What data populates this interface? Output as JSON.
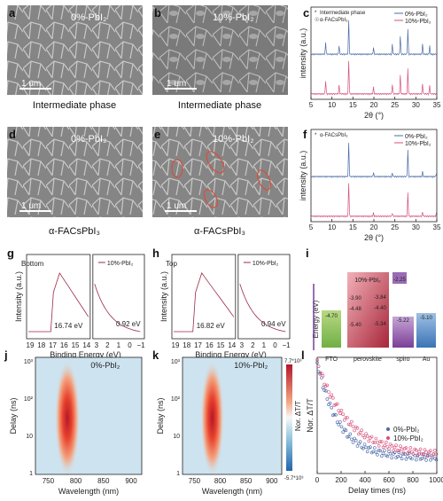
{
  "panels": {
    "a": {
      "letter": "a",
      "overlay": "0%-PbI₂",
      "scale": "1 um",
      "caption": "Intermediate phase"
    },
    "b": {
      "letter": "b",
      "overlay": "10%-PbI₂",
      "scale": "1 um",
      "caption": "Intermediate phase"
    },
    "d": {
      "letter": "d",
      "overlay": "0%-PbI₂",
      "scale": "1 um",
      "caption": "α-FACsPbI₃"
    },
    "e": {
      "letter": "e",
      "overlay": "10%-PbI₂",
      "scale": "1 um",
      "caption": "α-FACsPbI₃"
    },
    "c": {
      "letter": "c"
    },
    "f": {
      "letter": "f"
    },
    "g": {
      "letter": "g",
      "tag": "Bottom"
    },
    "h": {
      "letter": "h",
      "tag": "Top"
    },
    "i": {
      "letter": "i"
    },
    "j": {
      "letter": "j"
    },
    "k": {
      "letter": "k"
    },
    "l": {
      "letter": "l"
    }
  },
  "colors": {
    "blue": "#4a6aa8",
    "pink": "#d6507a",
    "sem": "#8a8a8a"
  },
  "chart_data": [
    {
      "id": "c",
      "type": "line",
      "xlabel": "2θ (°)",
      "ylabel": "intensity (a.u.)",
      "xlim": [
        5,
        35
      ],
      "xticks": [
        5,
        10,
        15,
        20,
        25,
        30,
        35
      ],
      "legend": [
        "Intermediate phase",
        "α-FACsPbI₃"
      ],
      "series": [
        {
          "name": "0%-PbI₂",
          "peaks": [
            [
              8.5,
              0.35
            ],
            [
              11.7,
              0.25
            ],
            [
              14.0,
              1.0
            ],
            [
              19.9,
              0.2
            ],
            [
              24.4,
              0.3
            ],
            [
              26.3,
              0.55
            ],
            [
              28.1,
              0.75
            ],
            [
              31.6,
              0.3
            ],
            [
              33.3,
              0.25
            ]
          ]
        },
        {
          "name": "10%-PbI₂",
          "peaks": [
            [
              8.5,
              0.4
            ],
            [
              11.7,
              0.25
            ],
            [
              14.0,
              1.0
            ],
            [
              19.9,
              0.2
            ],
            [
              24.4,
              0.3
            ],
            [
              26.3,
              0.55
            ],
            [
              28.1,
              0.75
            ],
            [
              31.6,
              0.3
            ],
            [
              33.3,
              0.25
            ]
          ]
        }
      ]
    },
    {
      "id": "f",
      "type": "line",
      "xlabel": "2θ (°)",
      "ylabel": "intensity (a.u.)",
      "xlim": [
        5,
        35
      ],
      "xticks": [
        5,
        10,
        15,
        20,
        25,
        30,
        35
      ],
      "legend": [
        "α-FACsPbI₃"
      ],
      "series": [
        {
          "name": "0%-PbI₂",
          "peaks": [
            [
              14.0,
              1.0
            ],
            [
              19.9,
              0.12
            ],
            [
              24.4,
              0.1
            ],
            [
              28.1,
              0.8
            ],
            [
              31.6,
              0.15
            ],
            [
              34.9,
              0.1
            ]
          ]
        },
        {
          "name": "10%-PbI₂",
          "peaks": [
            [
              14.0,
              1.0
            ],
            [
              19.9,
              0.1
            ],
            [
              24.4,
              0.1
            ],
            [
              28.1,
              0.7
            ],
            [
              31.6,
              0.12
            ],
            [
              34.9,
              0.1
            ]
          ]
        }
      ]
    },
    {
      "id": "g",
      "type": "line",
      "ylabel": "Intensity (a.u.)",
      "xlabel": "Binding Energy (eV)",
      "left_xticks": [
        "19",
        "18",
        "17",
        "16",
        "15",
        "14"
      ],
      "right_xticks": [
        "3",
        "2",
        "1",
        "0",
        "−1"
      ],
      "series_name": "10%-PbI₂",
      "annotations": [
        "16.74 eV",
        "0.92 eV"
      ]
    },
    {
      "id": "h",
      "type": "line",
      "ylabel": "Intensity (a.u.)",
      "xlabel": "Binding Energy (eV)",
      "left_xticks": [
        "19",
        "18",
        "17",
        "16",
        "15",
        "14"
      ],
      "right_xticks": [
        "3",
        "2",
        "1",
        "0",
        "−1"
      ],
      "series_name": "10%-PbI₂",
      "annotations": [
        "16.82 eV",
        "0.94 eV"
      ]
    },
    {
      "id": "i",
      "type": "diagram",
      "ylabel": "Energy (eV)",
      "layers": [
        {
          "name": "FTO",
          "level": "-4.70"
        },
        {
          "name": "perovskite",
          "top_left": "-3.90",
          "top_right": "-3.84",
          "mid_left": "-4.48",
          "mid_right": "-4.40",
          "bottom_left": "-5.40",
          "bottom_right": "-5.34",
          "title": "10%-PbI₂"
        },
        {
          "name": "spiro",
          "top": "-2.25",
          "bottom": "-5.22"
        },
        {
          "name": "Au",
          "level": "-5.10"
        }
      ]
    },
    {
      "id": "j",
      "type": "heatmap",
      "xlabel": "Wavelength (nm)",
      "ylabel": "Delay (ns)",
      "xticks": [
        "750",
        "800",
        "850",
        "900"
      ],
      "yticks": [
        "1",
        "10",
        "10²",
        "10³"
      ],
      "label": "0%-PbI₂"
    },
    {
      "id": "k",
      "type": "heatmap",
      "xlabel": "Wavelength (nm)",
      "ylabel": "Delay (ns)",
      "xticks": [
        "750",
        "800",
        "850",
        "900"
      ],
      "yticks": [
        "1",
        "10",
        "10²",
        "10³"
      ],
      "label": "10%-PbI₂",
      "colorbar": {
        "label": "Nor. ΔT/T",
        "max": "7.7*10³",
        "min": "-5.7*10³"
      }
    },
    {
      "id": "l",
      "type": "scatter",
      "xlabel": "Delay times (ns)",
      "ylabel": "Nor. ΔT/T",
      "xlim": [
        0,
        1000
      ],
      "xticks": [
        "0",
        "200",
        "400",
        "600",
        "800",
        "1000"
      ],
      "series": [
        {
          "name": "0%-PbI₂",
          "tau": 180,
          "floor": 0.1
        },
        {
          "name": "10%-PbI₂",
          "tau": 260,
          "floor": 0.12
        }
      ]
    }
  ]
}
